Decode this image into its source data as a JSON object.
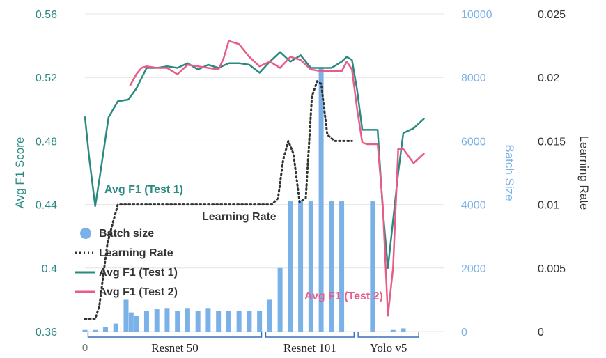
{
  "chart_data": {
    "type": "bar+line",
    "y_left": {
      "label": "Avg F1 Score",
      "ticks": [
        "0.36",
        "0.4",
        "0.44",
        "0.48",
        "0.52",
        "0.56"
      ],
      "range": [
        0.36,
        0.56
      ],
      "color": "#2a8a82"
    },
    "y_mid": {
      "label": "Batch Size",
      "ticks": [
        "0",
        "2000",
        "4000",
        "6000",
        "8000",
        "10000"
      ],
      "range": [
        0,
        10000
      ],
      "color": "#7ab2e8"
    },
    "y_right": {
      "label": "Learning Rate",
      "ticks": [
        "0",
        "0.005",
        "0.01",
        "0.015",
        "0.02",
        "0.025"
      ],
      "range": [
        0,
        0.025
      ],
      "color": "#333333"
    },
    "x_tick_zero": "0",
    "x_range": [
      0,
      35
    ],
    "groups": [
      {
        "label": "Resnet 50",
        "from": 0.3,
        "to": 17.2
      },
      {
        "label": "Resnet 101",
        "from": 17.6,
        "to": 26.2
      },
      {
        "label": "Yolo v5",
        "from": 26.6,
        "to": 32.5
      }
    ],
    "grid": "horizontal",
    "legend": {
      "position": "bottom-left",
      "items": [
        {
          "label": "Batch size",
          "kind": "dot",
          "color": "#7ab2e8"
        },
        {
          "label": "Learning Rate",
          "kind": "dotted",
          "color": "#333333"
        },
        {
          "label": "Avg F1 (Test 1)",
          "kind": "line",
          "color": "#2a8a82"
        },
        {
          "label": "Avg F1 (Test 2)",
          "kind": "line",
          "color": "#e85c86"
        }
      ]
    },
    "annotations": {
      "test1": {
        "text": "Avg F1 (Test 1)",
        "color": "#2a8a82"
      },
      "lr": {
        "text": "Learning Rate",
        "color": "#333333"
      },
      "test2": {
        "text": "Avg F1 (Test 2)",
        "color": "#e85c86"
      }
    },
    "series": [
      {
        "name": "Batch size",
        "axis": "mid",
        "kind": "bar",
        "color": "#7ab2e8",
        "x": [
          0,
          1,
          2,
          3,
          4,
          4.5,
          5,
          6,
          7,
          8,
          9,
          10,
          11,
          12,
          13,
          14,
          15,
          16,
          17,
          18,
          19,
          20,
          21,
          22,
          23,
          24,
          25,
          28,
          30,
          31
        ],
        "values": [
          50,
          50,
          150,
          250,
          1000,
          600,
          500,
          640,
          700,
          740,
          640,
          740,
          640,
          740,
          640,
          640,
          640,
          640,
          640,
          1000,
          2000,
          4100,
          4100,
          4100,
          8300,
          4100,
          4100,
          4100,
          50,
          100
        ]
      },
      {
        "name": "Learning Rate",
        "axis": "right",
        "kind": "dotted-line",
        "color": "#333333",
        "x": [
          0,
          1,
          1.4,
          2.2,
          3.2,
          15,
          18.2,
          18.8,
          19.3,
          19.8,
          20.3,
          20.9,
          21.5,
          22.1,
          22.6,
          23,
          23.6,
          24.3,
          25.2,
          26
        ],
        "values": [
          0.001,
          0.001,
          0.002,
          0.007,
          0.01,
          0.01,
          0.01,
          0.0105,
          0.0135,
          0.015,
          0.014,
          0.0102,
          0.0105,
          0.0185,
          0.0197,
          0.0195,
          0.0155,
          0.015,
          0.015,
          0.015
        ]
      },
      {
        "name": "Avg F1 (Test 1)",
        "axis": "left",
        "kind": "line",
        "color": "#2a8a82",
        "x": [
          0,
          0.4,
          1,
          1.5,
          2.3,
          3.2,
          4.2,
          5,
          6,
          7,
          8,
          9,
          10,
          11,
          12,
          13,
          14,
          15,
          16,
          17,
          18,
          19,
          20,
          21,
          22,
          23,
          24,
          25,
          25.5,
          26,
          26.5,
          27,
          27.5,
          28,
          28.5,
          29,
          29.5,
          30,
          30.5,
          31,
          32,
          33
        ],
        "values": [
          0.495,
          0.47,
          0.439,
          0.46,
          0.495,
          0.505,
          0.506,
          0.513,
          0.526,
          0.526,
          0.527,
          0.526,
          0.529,
          0.525,
          0.528,
          0.526,
          0.529,
          0.529,
          0.528,
          0.523,
          0.53,
          0.536,
          0.53,
          0.534,
          0.526,
          0.526,
          0.526,
          0.53,
          0.533,
          0.531,
          0.512,
          0.487,
          0.487,
          0.487,
          0.487,
          0.437,
          0.4,
          0.43,
          0.46,
          0.485,
          0.488,
          0.494
        ]
      },
      {
        "name": "Avg F1 (Test 2)",
        "axis": "left",
        "kind": "line",
        "color": "#e85c86",
        "x": [
          4.4,
          5,
          5.5,
          6,
          7,
          8,
          9,
          10,
          11,
          12,
          13,
          13.5,
          14,
          15,
          16,
          17,
          18,
          19,
          20,
          21,
          22,
          23,
          24,
          25,
          25.5,
          26,
          26.5,
          27,
          27.5,
          28,
          28.5,
          29,
          29.5,
          30,
          30.5,
          31,
          32,
          33
        ],
        "values": [
          0.515,
          0.522,
          0.526,
          0.527,
          0.526,
          0.526,
          0.522,
          0.528,
          0.527,
          0.526,
          0.525,
          0.532,
          0.543,
          0.541,
          0.533,
          0.527,
          0.53,
          0.526,
          0.533,
          0.531,
          0.525,
          0.524,
          0.524,
          0.524,
          0.53,
          0.525,
          0.5,
          0.479,
          0.478,
          0.478,
          0.478,
          0.44,
          0.37,
          0.4,
          0.475,
          0.475,
          0.466,
          0.472
        ]
      }
    ]
  }
}
